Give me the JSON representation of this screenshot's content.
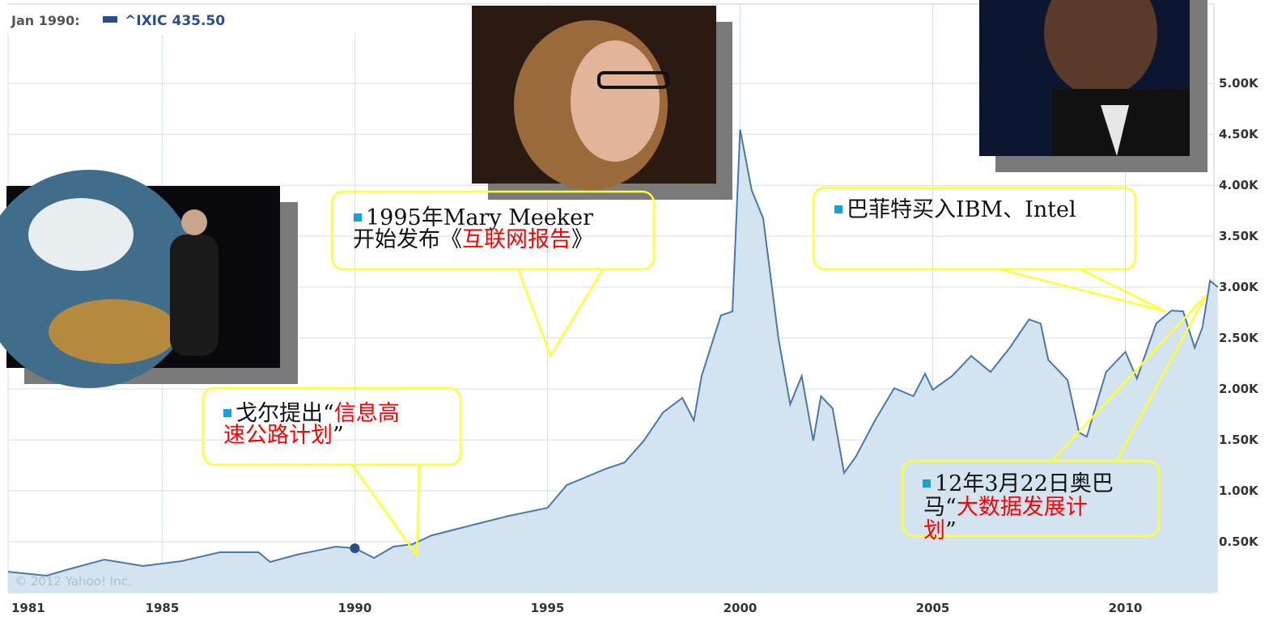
{
  "chart_data": {
    "type": "area",
    "header": {
      "date": "Jan 1990:",
      "x": 1990.0,
      "value": 435.5,
      "value_label": "435.50"
    },
    "credit": "© 2012 Yahoo! Inc.",
    "series": [
      {
        "name": "^IXIC",
        "color": "#4a78a6",
        "fill": "#d4e3f0",
        "x": [
          1981.0,
          1982.0,
          1982.5,
          1983.5,
          1984.5,
          1985.5,
          1986.5,
          1987.5,
          1987.8,
          1988.5,
          1989.5,
          1990.0,
          1990.5,
          1991.0,
          1991.5,
          1992.0,
          1993.0,
          1994.0,
          1995.0,
          1995.5,
          1996.0,
          1996.5,
          1997.0,
          1997.5,
          1998.0,
          1998.5,
          1998.8,
          1999.0,
          1999.5,
          1999.8,
          2000.0,
          2000.3,
          2000.6,
          2001.0,
          2001.3,
          2001.6,
          2001.9,
          2002.1,
          2002.4,
          2002.7,
          2003.0,
          2003.5,
          2004.0,
          2004.5,
          2004.8,
          2005.0,
          2005.5,
          2006.0,
          2006.5,
          2007.0,
          2007.5,
          2007.8,
          2008.0,
          2008.5,
          2008.8,
          2009.0,
          2009.5,
          2010.0,
          2010.3,
          2010.8,
          2011.2,
          2011.5,
          2011.8,
          2012.0,
          2012.2,
          2012.4
        ],
        "values": [
          206,
          167,
          222,
          325,
          262,
          310,
          397,
          397,
          302,
          373,
          452,
          437,
          341,
          452,
          476,
          563,
          659,
          754,
          833,
          1056,
          1135,
          1214,
          1278,
          1492,
          1770,
          1913,
          1690,
          2127,
          2722,
          2762,
          4548,
          3952,
          3675,
          2484,
          1849,
          2127,
          1492,
          1929,
          1810,
          1175,
          1333,
          1690,
          2008,
          1929,
          2151,
          1992,
          2127,
          2325,
          2167,
          2405,
          2683,
          2643,
          2286,
          2087,
          1571,
          1532,
          2167,
          2365,
          2103,
          2643,
          2770,
          2762,
          2405,
          2603,
          3063,
          3000
        ]
      }
    ],
    "xlim": [
      1981,
      2012.3
    ],
    "xticks": [
      1981,
      1985,
      1990,
      1995,
      2000,
      2005,
      2010
    ],
    "ylim": [
      0,
      5780
    ],
    "yticks": [
      {
        "value": 500,
        "label": "0.50K"
      },
      {
        "value": 1000,
        "label": "1.00K"
      },
      {
        "value": 1500,
        "label": "1.50K"
      },
      {
        "value": 2000,
        "label": "2.00K"
      },
      {
        "value": 2500,
        "label": "2.50K"
      },
      {
        "value": 3000,
        "label": "3.00K"
      },
      {
        "value": 3500,
        "label": "3.50K"
      },
      {
        "value": 4000,
        "label": "4.00K"
      },
      {
        "value": 4500,
        "label": "4.50K"
      },
      {
        "value": 5000,
        "label": "5.00K"
      }
    ],
    "grid": true,
    "highlight_color": "#ff0000",
    "annotations": [
      {
        "lines": [
          [
            {
              "text": "1995年Mary Meeker"
            }
          ],
          [
            {
              "text": "开始发布《"
            },
            {
              "text": "互联网报告",
              "highlight": true
            },
            {
              "text": "》"
            }
          ]
        ]
      },
      {
        "lines": [
          [
            {
              "text": "戈尔提出“"
            },
            {
              "text": "信息高",
              "highlight": true
            }
          ],
          [
            {
              "text": "速公路计划",
              "highlight": true
            },
            {
              "text": "”"
            }
          ]
        ]
      },
      {
        "lines": [
          [
            {
              "text": "巴菲特买入IBM、Intel"
            }
          ]
        ]
      },
      {
        "lines": [
          [
            {
              "text": "12年3月22日奥巴"
            }
          ],
          [
            {
              "text": "马“"
            },
            {
              "text": "大数据发展计",
              "highlight": true
            }
          ],
          [
            {
              "text": "划",
              "highlight": true
            },
            {
              "text": "”"
            }
          ]
        ]
      }
    ]
  }
}
